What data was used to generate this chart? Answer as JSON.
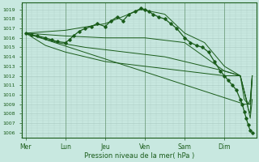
{
  "bg_color": "#c8e8e0",
  "plot_bg_color": "#c8e8e0",
  "grid_color": "#a8c8c0",
  "line_color": "#1a5c1a",
  "marker_color": "#1a5c1a",
  "xlabel": "Pression niveau de la mer( hPa )",
  "ylim": [
    1005.5,
    1019.7
  ],
  "yticks": [
    1006,
    1007,
    1008,
    1009,
    1010,
    1011,
    1012,
    1013,
    1014,
    1015,
    1016,
    1017,
    1018,
    1019
  ],
  "xtick_labels": [
    "Mer",
    "Lun",
    "Jeu",
    "Ven",
    "Sam",
    "Dim"
  ],
  "xtick_positions": [
    0,
    1,
    2,
    3,
    4,
    5
  ],
  "xlim": [
    -0.1,
    5.8
  ],
  "series": [
    {
      "x": [
        0.0,
        0.15,
        0.3,
        0.5,
        0.65,
        0.8,
        1.0,
        1.1,
        1.2,
        1.35,
        1.5,
        1.65,
        1.8,
        2.0,
        2.15,
        2.3,
        2.45,
        2.6,
        2.75,
        2.9,
        3.0,
        3.1,
        3.2,
        3.35,
        3.5,
        3.65,
        3.8,
        4.0,
        4.15,
        4.3,
        4.45,
        4.6,
        4.75,
        4.9,
        5.0,
        5.1,
        5.2,
        5.3,
        5.4,
        5.45,
        5.5,
        5.55,
        5.6,
        5.65,
        5.7
      ],
      "y": [
        1016.5,
        1016.3,
        1016.2,
        1016.0,
        1015.8,
        1015.6,
        1015.5,
        1015.8,
        1016.2,
        1016.7,
        1017.0,
        1017.2,
        1017.5,
        1017.2,
        1017.8,
        1018.2,
        1017.8,
        1018.5,
        1018.8,
        1019.1,
        1019.0,
        1018.8,
        1018.5,
        1018.2,
        1018.0,
        1017.5,
        1017.0,
        1016.0,
        1015.5,
        1015.2,
        1015.0,
        1014.5,
        1013.5,
        1012.5,
        1012.0,
        1011.5,
        1011.0,
        1010.5,
        1009.5,
        1009.0,
        1008.2,
        1007.5,
        1006.8,
        1006.2,
        1006.0
      ],
      "marker": true
    },
    {
      "x": [
        0.0,
        1.0,
        2.0,
        2.9,
        3.5,
        4.0,
        4.5,
        5.0,
        5.4,
        5.55,
        5.6,
        5.65,
        5.7
      ],
      "y": [
        1016.5,
        1016.8,
        1017.5,
        1019.0,
        1018.5,
        1016.5,
        1015.5,
        1013.0,
        1012.0,
        1009.5,
        1008.5,
        1007.5,
        1009.5
      ],
      "marker": false
    },
    {
      "x": [
        0.0,
        1.0,
        2.0,
        3.0,
        4.0,
        5.0,
        5.4,
        5.55,
        5.6,
        5.65,
        5.7
      ],
      "y": [
        1016.5,
        1016.2,
        1016.0,
        1016.0,
        1015.5,
        1012.5,
        1012.0,
        1009.5,
        1008.5,
        1008.0,
        1012.0
      ],
      "marker": false
    },
    {
      "x": [
        0.0,
        0.8,
        1.5,
        2.5,
        3.5,
        4.5,
        5.0,
        5.4,
        5.55,
        5.6,
        5.65,
        5.7
      ],
      "y": [
        1016.5,
        1015.5,
        1015.0,
        1014.5,
        1014.0,
        1013.0,
        1012.5,
        1012.0,
        1009.5,
        1009.0,
        1009.0,
        1012.0
      ],
      "marker": false
    },
    {
      "x": [
        0.0,
        0.5,
        1.0,
        2.0,
        3.0,
        4.0,
        5.0,
        5.4,
        5.5,
        5.6,
        5.65,
        5.7
      ],
      "y": [
        1016.5,
        1015.2,
        1014.5,
        1013.5,
        1013.0,
        1012.5,
        1012.0,
        1012.0,
        1009.5,
        1009.0,
        1009.0,
        1012.0
      ],
      "marker": false
    },
    {
      "x": [
        0.0,
        5.5,
        5.6,
        5.65,
        5.7
      ],
      "y": [
        1016.5,
        1009.0,
        1009.0,
        1009.5,
        1012.0
      ],
      "marker": false
    }
  ]
}
